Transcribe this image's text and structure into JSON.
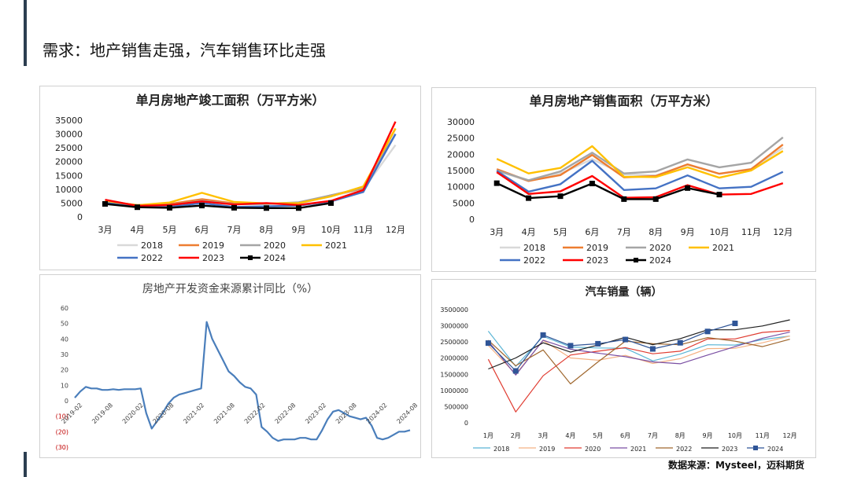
{
  "page": {
    "title": "需求：地产销售走强，汽车销售环比走强",
    "source": "数据来源：Mysteel，迈科期货"
  },
  "chart_data": [
    {
      "id": "completion",
      "type": "line",
      "title": "单月房地产竣工面积（万平方米）",
      "categories": [
        "3月",
        "4月",
        "5月",
        "6月",
        "7月",
        "8月",
        "9月",
        "10月",
        "11月",
        "12月"
      ],
      "ylim": [
        0,
        35000
      ],
      "yticks": [
        0,
        5000,
        10000,
        15000,
        20000,
        25000,
        30000,
        35000
      ],
      "grid": false,
      "legend_position": "bottom",
      "series": [
        {
          "name": "2018",
          "color": "#d9d9d9",
          "values": [
            5400,
            4200,
            4600,
            6200,
            4800,
            4700,
            4800,
            7600,
            10000,
            26000
          ]
        },
        {
          "name": "2019",
          "color": "#ed7d31",
          "values": [
            5600,
            4300,
            4700,
            6400,
            4900,
            4900,
            5000,
            7800,
            10300,
            32000
          ]
        },
        {
          "name": "2020",
          "color": "#a5a5a5",
          "values": [
            5100,
            4000,
            4300,
            5800,
            4600,
            4700,
            5300,
            7800,
            10500,
            30000
          ]
        },
        {
          "name": "2021",
          "color": "#ffc000",
          "values": [
            5800,
            4200,
            5200,
            8700,
            5400,
            4900,
            5000,
            7400,
            11000,
            32000
          ]
        },
        {
          "name": "2022",
          "color": "#4472c4",
          "values": [
            5100,
            3500,
            3600,
            5000,
            3600,
            3800,
            4100,
            5600,
            9000,
            30000
          ]
        },
        {
          "name": "2023",
          "color": "#ff0000",
          "values": [
            6200,
            4000,
            4300,
            5600,
            4500,
            5000,
            4300,
            5800,
            9700,
            34500
          ]
        },
        {
          "name": "2024",
          "color": "#000000",
          "marker": true,
          "values": [
            4700,
            3500,
            3300,
            4100,
            3300,
            3200,
            3200,
            5000,
            null,
            null
          ]
        }
      ]
    },
    {
      "id": "sales",
      "type": "line",
      "title": "单月房地产销售面积（万平方米）",
      "categories": [
        "3月",
        "4月",
        "5月",
        "6月",
        "7月",
        "8月",
        "9月",
        "10月",
        "11月",
        "12月"
      ],
      "ylim": [
        0,
        30000
      ],
      "yticks": [
        0,
        5000,
        10000,
        15000,
        20000,
        25000,
        30000
      ],
      "grid": false,
      "legend_position": "bottom",
      "series": [
        {
          "name": "2018",
          "color": "#d9d9d9",
          "values": [
            15000,
            11700,
            14000,
            18500,
            13800,
            13500,
            16800,
            14000,
            15500,
            22000
          ]
        },
        {
          "name": "2019",
          "color": "#ed7d31",
          "values": [
            15400,
            11800,
            13600,
            19800,
            12900,
            13300,
            16900,
            14000,
            15400,
            23000
          ]
        },
        {
          "name": "2020",
          "color": "#a5a5a5",
          "values": [
            15000,
            12000,
            14700,
            20500,
            14100,
            14700,
            18400,
            16000,
            17400,
            25200
          ]
        },
        {
          "name": "2021",
          "color": "#ffc000",
          "values": [
            18600,
            14100,
            15800,
            22500,
            13100,
            13000,
            16000,
            12800,
            15000,
            21000
          ]
        },
        {
          "name": "2022",
          "color": "#4472c4",
          "values": [
            14900,
            8500,
            10800,
            18000,
            9000,
            9500,
            13500,
            9500,
            10000,
            14600
          ]
        },
        {
          "name": "2023",
          "color": "#ff0000",
          "values": [
            14500,
            7800,
            8600,
            13300,
            6600,
            6800,
            10500,
            7600,
            7800,
            11100
          ]
        },
        {
          "name": "2024",
          "color": "#000000",
          "marker": true,
          "values": [
            11100,
            6500,
            7100,
            11000,
            6200,
            6200,
            9600,
            7600,
            null,
            null
          ]
        }
      ]
    },
    {
      "id": "funding",
      "type": "line",
      "title": "房地产开发资金来源累计同比（%）",
      "xlabels": [
        "2019-02",
        "2019-08",
        "2020-02",
        "2020-08",
        "2021-02",
        "2021-08",
        "2022-02",
        "2022-08",
        "2023-02",
        "2023-08",
        "2024-02",
        "2024-08"
      ],
      "ylim": [
        -30,
        60
      ],
      "yticks": [
        60,
        50,
        40,
        30,
        20,
        10,
        0,
        -10,
        -20,
        -30
      ],
      "ytick_labels": [
        "60",
        "50",
        "40",
        "30",
        "20",
        "10",
        "0",
        "(10)",
        "(20)",
        "(30)"
      ],
      "grid": false,
      "series": [
        {
          "name": "",
          "color": "#4a7ebb",
          "values": [
            2,
            6,
            9,
            8,
            8,
            7,
            7,
            7.5,
            7,
            7.5,
            7.5,
            7.5,
            8,
            -8,
            -18,
            -13,
            -8,
            -2,
            2,
            4,
            5,
            6,
            7,
            8,
            51,
            40,
            33,
            26,
            19,
            16,
            12,
            9,
            8,
            4,
            -17,
            -20,
            -24,
            -26,
            -25,
            -25,
            -25,
            -24,
            -24,
            -25,
            -25,
            -19,
            -12,
            -7,
            -6,
            -8,
            -10,
            -11,
            -12,
            -11,
            -16,
            -24,
            -25,
            -24,
            -22,
            -20,
            -20,
            -19
          ]
        }
      ]
    },
    {
      "id": "autos",
      "type": "line",
      "title": "汽车销量（辆）",
      "categories": [
        "1月",
        "2月",
        "3月",
        "4月",
        "5月",
        "6月",
        "7月",
        "8月",
        "9月",
        "10月",
        "11月",
        "12月"
      ],
      "ylim": [
        0,
        3500000
      ],
      "yticks": [
        0,
        500000,
        1000000,
        1500000,
        2000000,
        2500000,
        3000000,
        3500000
      ],
      "grid": false,
      "legend_position": "bottom",
      "series": [
        {
          "name": "2018",
          "color": "#5bb5d5",
          "values": [
            2810000,
            1720000,
            2650000,
            2320000,
            2290000,
            2280000,
            1890000,
            2100000,
            2390000,
            2380000,
            2550000,
            2660000
          ]
        },
        {
          "name": "2019",
          "color": "#f4b183",
          "values": [
            2370000,
            1480000,
            2520000,
            1980000,
            1910000,
            2060000,
            1810000,
            1960000,
            2270000,
            2280000,
            2450000,
            2660000
          ]
        },
        {
          "name": "2020",
          "color": "#e03c31",
          "values": [
            1940000,
            310000,
            1430000,
            2070000,
            2190000,
            2300000,
            2110000,
            2190000,
            2570000,
            2570000,
            2770000,
            2830000
          ]
        },
        {
          "name": "2021",
          "color": "#7a4fa3",
          "values": [
            2500000,
            1450000,
            2530000,
            2250000,
            2130000,
            2020000,
            1860000,
            1800000,
            2070000,
            2330000,
            2590000,
            2780000
          ]
        },
        {
          "name": "2022",
          "color": "#a0682f",
          "values": [
            2530000,
            1740000,
            2230000,
            1180000,
            1860000,
            2500000,
            2420000,
            2390000,
            2610000,
            2500000,
            2330000,
            2560000
          ]
        },
        {
          "name": "2023",
          "color": "#1f1f1f",
          "values": [
            1640000,
            1980000,
            2450000,
            2160000,
            2380000,
            2620000,
            2390000,
            2580000,
            2850000,
            2850000,
            2970000,
            3160000
          ]
        },
        {
          "name": "2024",
          "color": "#2f5597",
          "marker": true,
          "values": [
            2440000,
            1580000,
            2690000,
            2360000,
            2420000,
            2550000,
            2260000,
            2450000,
            2800000,
            3050000,
            null,
            null
          ]
        }
      ]
    }
  ]
}
